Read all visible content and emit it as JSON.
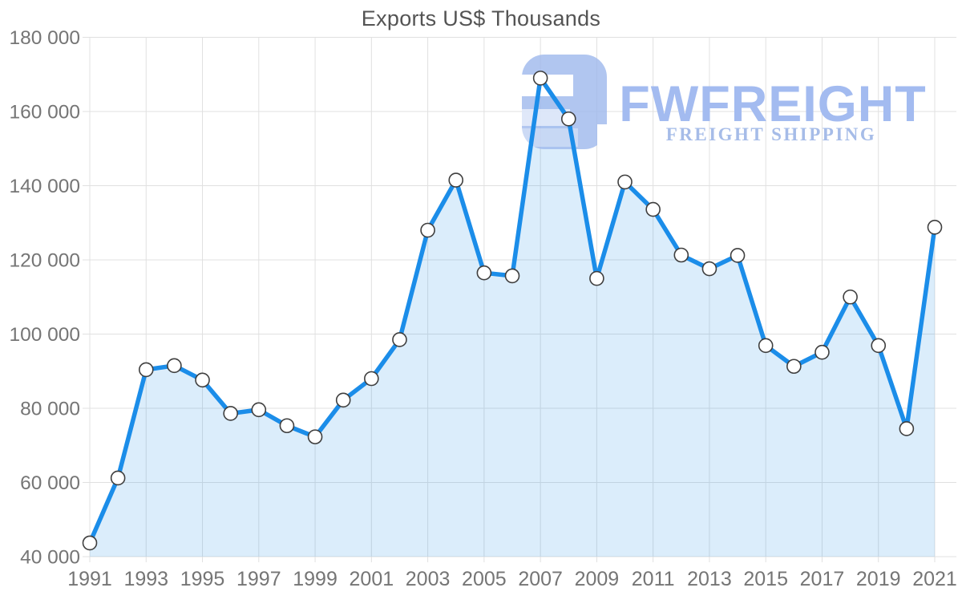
{
  "chart_data": {
    "type": "area",
    "title": "Exports US$ Thousands",
    "xlabel": "",
    "ylabel": "",
    "x": [
      1991,
      1992,
      1993,
      1994,
      1995,
      1996,
      1997,
      1998,
      1999,
      2000,
      2001,
      2002,
      2003,
      2004,
      2005,
      2006,
      2007,
      2008,
      2009,
      2010,
      2011,
      2012,
      2013,
      2014,
      2015,
      2016,
      2017,
      2018,
      2019,
      2020,
      2021
    ],
    "values": [
      43700,
      61200,
      90400,
      91500,
      87600,
      78600,
      79600,
      75300,
      72300,
      82200,
      88000,
      98500,
      128000,
      141500,
      116500,
      115700,
      169000,
      158000,
      115000,
      141000,
      133600,
      121300,
      117600,
      121200,
      96900,
      91300,
      95100,
      110000,
      96900,
      74500,
      128800
    ],
    "x_ticks": [
      1991,
      1993,
      1995,
      1997,
      1999,
      2001,
      2003,
      2005,
      2007,
      2009,
      2011,
      2013,
      2015,
      2017,
      2019,
      2021
    ],
    "x_tick_labels": [
      "1991",
      "1993",
      "1995",
      "1997",
      "1999",
      "2001",
      "2003",
      "2005",
      "2007",
      "2009",
      "2011",
      "2013",
      "2015",
      "2017",
      "2019",
      "2021"
    ],
    "y_ticks": [
      40000,
      60000,
      80000,
      100000,
      120000,
      140000,
      160000,
      180000
    ],
    "y_tick_labels": [
      "40 000",
      "60 000",
      "80 000",
      "100 000",
      "120 000",
      "140 000",
      "160 000",
      "180 000"
    ],
    "ylim": [
      40000,
      180000
    ],
    "grid": true,
    "legend": "none",
    "styles": {
      "line_color": "#1b8de9",
      "area_fill": "rgba(27,140,232,0.155)",
      "marker_fill": "#ffffff",
      "marker_stroke": "#3f3f3f",
      "grid_color": "#e0e0e0",
      "tick_label_color": "#757575",
      "title_color": "#545454"
    }
  },
  "watermark": {
    "brand": "FWFREIGHT",
    "tagline": "FREIGHT SHIPPING",
    "mark_color": "#9db8ec",
    "brand_color": "#a3bbf0",
    "tagline_color": "#a6bce8"
  }
}
